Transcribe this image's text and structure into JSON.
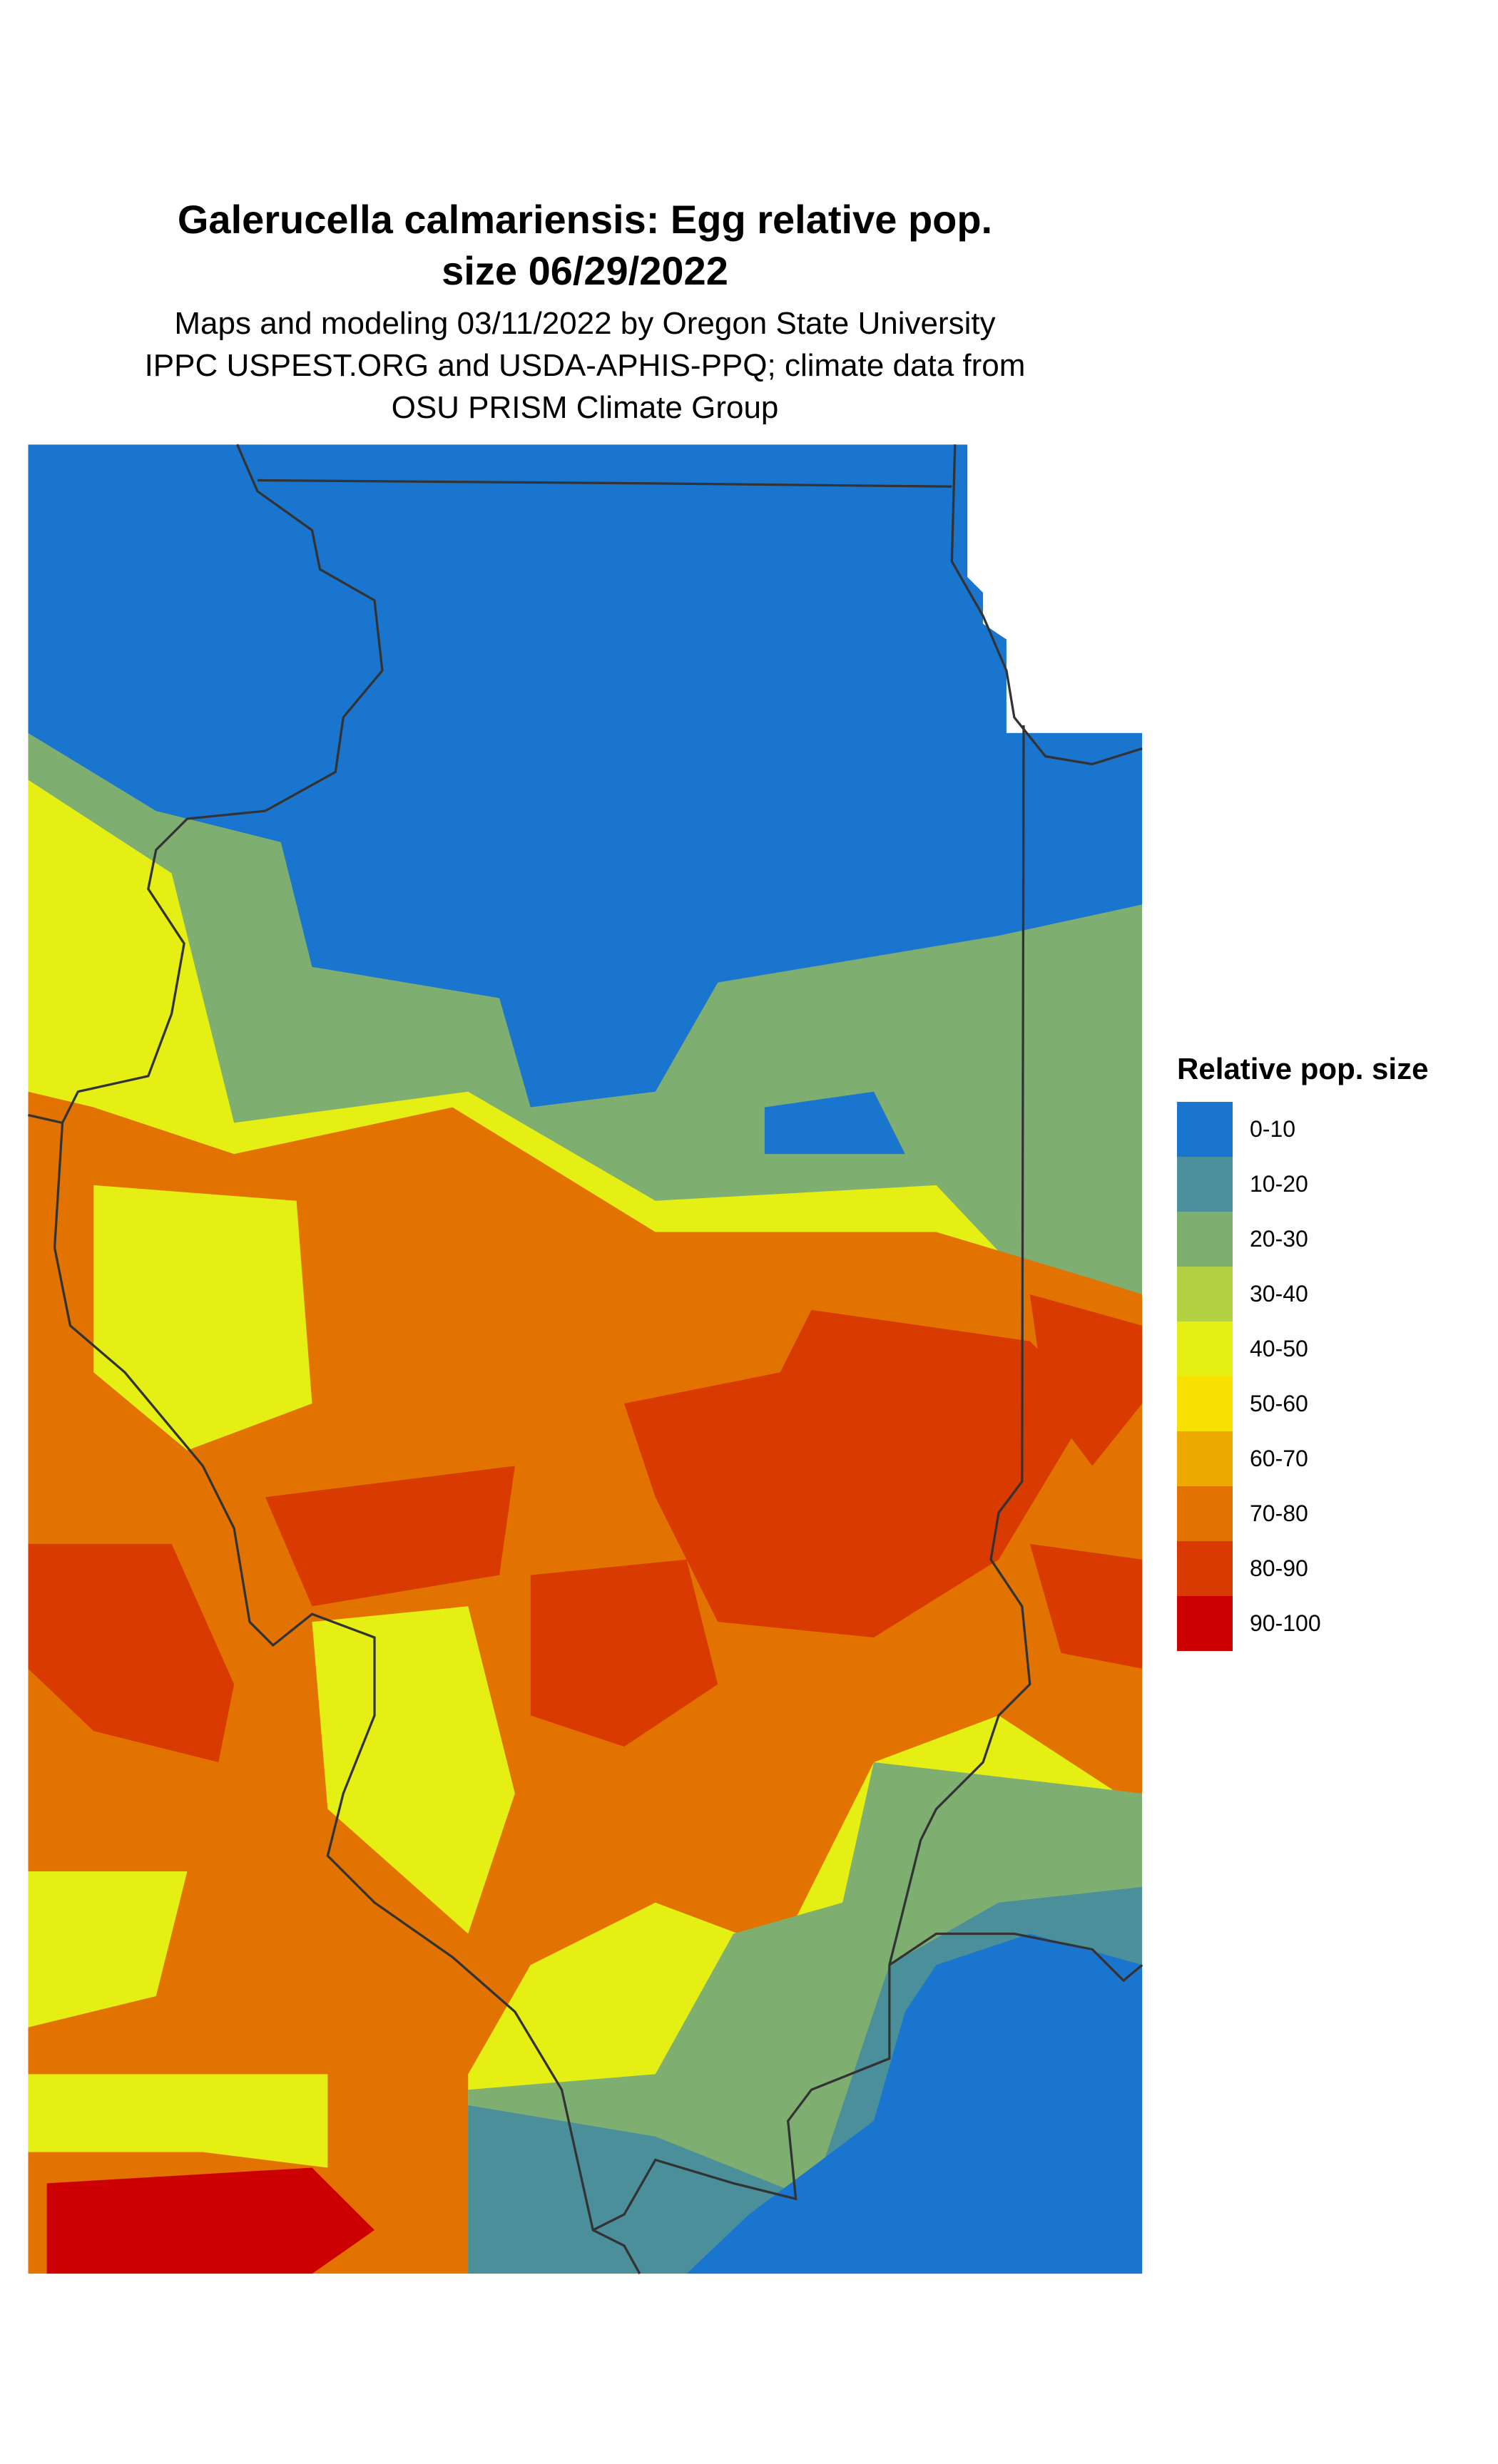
{
  "title": "Galerucella calmariensis: Egg relative pop. size 06/29/2022",
  "title_lines": [
    "Galerucella calmariensis: Egg relative pop.",
    "size 06/29/2022"
  ],
  "subtitle_lines": [
    "Maps and modeling 03/11/2022 by Oregon State University",
    "IPPC USPEST.ORG and USDA-APHIS-PPQ; climate data from",
    "OSU PRISM Climate Group"
  ],
  "legend": {
    "title": "Relative pop. size",
    "items": [
      {
        "label": "0-10",
        "color": "#1a75cf"
      },
      {
        "label": "10-20",
        "color": "#4a8f9a"
      },
      {
        "label": "20-30",
        "color": "#7eae70"
      },
      {
        "label": "30-40",
        "color": "#b2d143"
      },
      {
        "label": "40-50",
        "color": "#e5ef14"
      },
      {
        "label": "50-60",
        "color": "#f8e100"
      },
      {
        "label": "60-70",
        "color": "#eeaa00"
      },
      {
        "label": "70-80",
        "color": "#e27300"
      },
      {
        "label": "80-90",
        "color": "#d83a00"
      },
      {
        "label": "90-100",
        "color": "#cc0000"
      }
    ]
  },
  "boundary_color": "#333333"
}
